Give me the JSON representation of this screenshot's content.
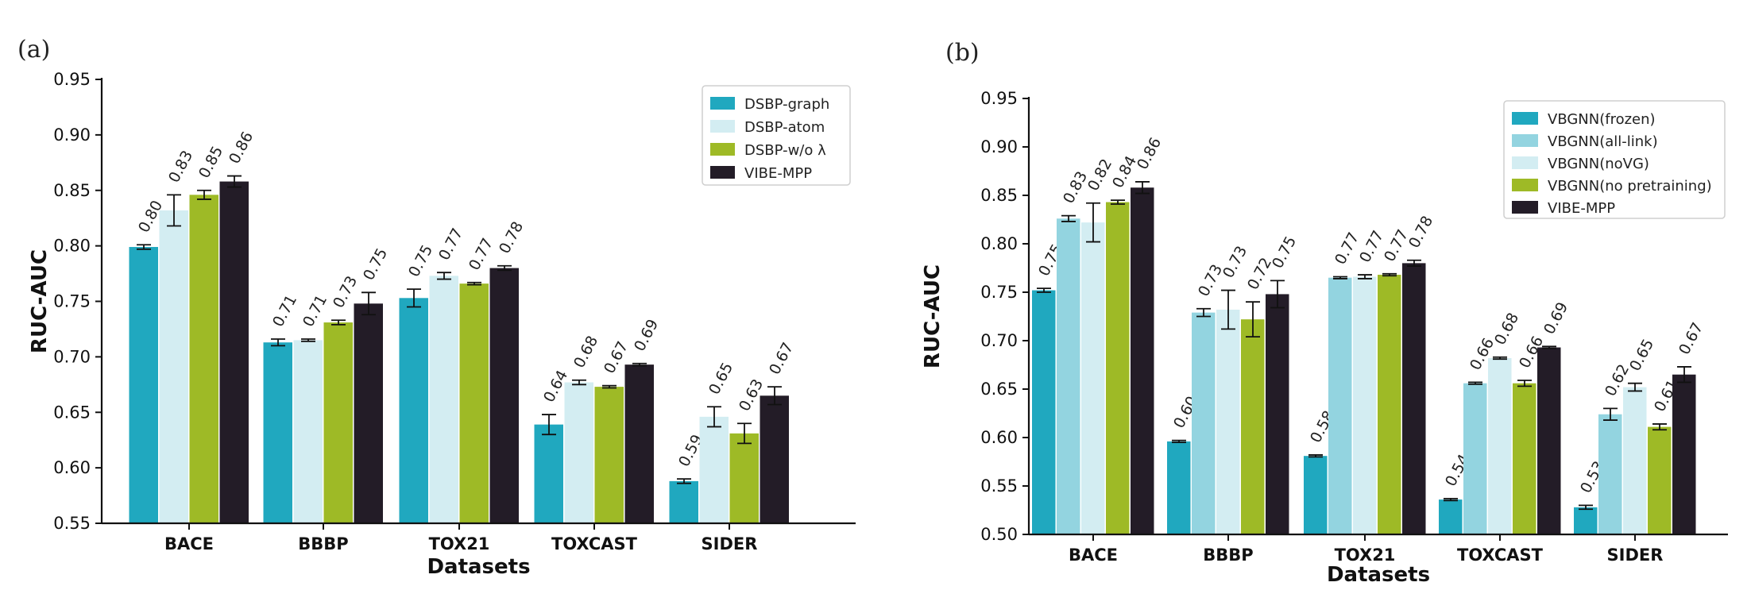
{
  "colors": {
    "teal": "#20a8bf",
    "light_teal": "#93d4e0",
    "pale_cyan": "#d3edf2",
    "green": "#9eba26",
    "dark": "#231c27"
  },
  "chart_data": [
    {
      "type": "bar",
      "panel_label": "(a)",
      "xlabel": "Datasets",
      "ylabel": "RUC-AUC",
      "ylim": [
        0.55,
        0.95
      ],
      "yticks": [
        "0.55",
        "0.60",
        "0.65",
        "0.70",
        "0.75",
        "0.80",
        "0.85",
        "0.90",
        "0.95"
      ],
      "categories": [
        "BACE",
        "BBBP",
        "TOX21",
        "TOXCAST",
        "SIDER"
      ],
      "legend_position": "top-right",
      "series": [
        {
          "name": "DSBP-graph",
          "color": "#20a8bf",
          "values": [
            0.799,
            0.713,
            0.753,
            0.639,
            0.588
          ],
          "errors": [
            0.002,
            0.003,
            0.008,
            0.009,
            0.002
          ],
          "labels": [
            "0.80",
            "0.71",
            "0.75",
            "0.64",
            "0.59"
          ]
        },
        {
          "name": "DSBP-atom",
          "color": "#d3edf2",
          "values": [
            0.832,
            0.715,
            0.773,
            0.677,
            0.646
          ],
          "errors": [
            0.014,
            0.001,
            0.003,
            0.002,
            0.009
          ],
          "labels": [
            "0.83",
            "0.71",
            "0.77",
            "0.68",
            "0.65"
          ]
        },
        {
          "name": "DSBP-w/o λ",
          "color": "#9eba26",
          "values": [
            0.846,
            0.731,
            0.766,
            0.673,
            0.631
          ],
          "errors": [
            0.004,
            0.002,
            0.001,
            0.001,
            0.009
          ],
          "labels": [
            "0.85",
            "0.73",
            "0.77",
            "0.67",
            "0.63"
          ]
        },
        {
          "name": "VIBE-MPP",
          "color": "#231c27",
          "values": [
            0.858,
            0.748,
            0.78,
            0.693,
            0.665
          ],
          "errors": [
            0.005,
            0.01,
            0.002,
            0.001,
            0.008
          ],
          "labels": [
            "0.86",
            "0.75",
            "0.78",
            "0.69",
            "0.67"
          ]
        }
      ]
    },
    {
      "type": "bar",
      "panel_label": "(b)",
      "xlabel": "Datasets",
      "ylabel": "RUC-AUC",
      "ylim": [
        0.5,
        0.95
      ],
      "yticks": [
        "0.50",
        "0.55",
        "0.60",
        "0.65",
        "0.70",
        "0.75",
        "0.80",
        "0.85",
        "0.90",
        "0.95"
      ],
      "categories": [
        "BACE",
        "BBBP",
        "TOX21",
        "TOXCAST",
        "SIDER"
      ],
      "legend_position": "top-right",
      "series": [
        {
          "name": "VBGNN(frozen)",
          "color": "#20a8bf",
          "values": [
            0.752,
            0.596,
            0.581,
            0.536,
            0.528
          ],
          "errors": [
            0.002,
            0.001,
            0.001,
            0.001,
            0.002
          ],
          "labels": [
            "0.75",
            "0.60",
            "0.58",
            "0.54",
            "0.53"
          ]
        },
        {
          "name": "VBGNN(all-link)",
          "color": "#93d4e0",
          "values": [
            0.826,
            0.729,
            0.765,
            0.656,
            0.624
          ],
          "errors": [
            0.003,
            0.004,
            0.001,
            0.001,
            0.006
          ],
          "labels": [
            "0.83",
            "0.73",
            "0.77",
            "0.66",
            "0.62"
          ]
        },
        {
          "name": "VBGNN(noVG)",
          "color": "#d3edf2",
          "values": [
            0.822,
            0.732,
            0.766,
            0.682,
            0.652
          ],
          "errors": [
            0.02,
            0.02,
            0.002,
            0.001,
            0.004
          ],
          "labels": [
            "0.82",
            "0.73",
            "0.77",
            "0.68",
            "0.65"
          ]
        },
        {
          "name": "VBGNN(no pretraining)",
          "color": "#9eba26",
          "values": [
            0.843,
            0.722,
            0.768,
            0.656,
            0.611
          ],
          "errors": [
            0.002,
            0.018,
            0.001,
            0.003,
            0.003
          ],
          "labels": [
            "0.84",
            "0.72",
            "0.77",
            "0.66",
            "0.61"
          ]
        },
        {
          "name": "VIBE-MPP",
          "color": "#231c27",
          "values": [
            0.858,
            0.748,
            0.78,
            0.693,
            0.665
          ],
          "errors": [
            0.006,
            0.014,
            0.003,
            0.001,
            0.008
          ],
          "labels": [
            "0.86",
            "0.75",
            "0.78",
            "0.69",
            "0.67"
          ]
        }
      ]
    }
  ]
}
